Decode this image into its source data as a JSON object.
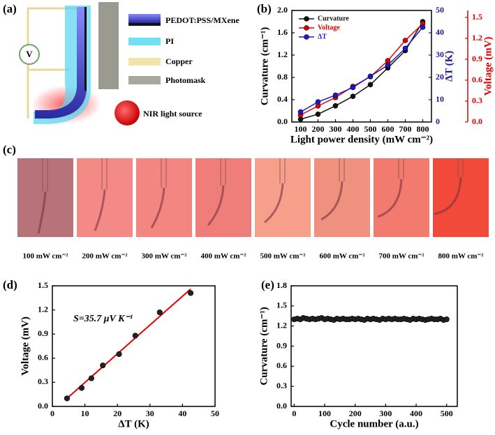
{
  "panel_labels": [
    "(a)",
    "(b)",
    "(c)",
    "(d)",
    "(e)"
  ],
  "panel_a": {
    "voltmeter": "V",
    "legend": [
      "PEDOT:PSS/MXene",
      "PI",
      "Copper",
      "Photomask"
    ],
    "light_source": "NIR light source"
  },
  "panel_c": {
    "captions": [
      "100 mW cm⁻²",
      "200 mW cm⁻²",
      "300 mW cm⁻²",
      "400 mW cm⁻²",
      "500 mW cm⁻²",
      "600 mW cm⁻²",
      "700 mW cm⁻²",
      "800 mW cm⁻²"
    ]
  },
  "chart_data": [
    {
      "type": "line",
      "xlabel": "Light power density (mW cm⁻²)",
      "ylabel": "Curvature (cm⁻¹)",
      "y2label": "ΔT (K)",
      "y3label": "Voltage (mV)",
      "x": [
        100,
        200,
        300,
        400,
        500,
        600,
        700,
        800
      ],
      "xlim": [
        50,
        850
      ],
      "xticks": [
        100,
        200,
        300,
        400,
        500,
        600,
        700,
        800
      ],
      "ylim": [
        0,
        2
      ],
      "yticks": [
        {
          "value": 0,
          "label": "0.0"
        },
        0.4,
        0.8,
        1.2,
        1.6,
        {
          "value": 2,
          "label": "2.0"
        }
      ],
      "y2lim": [
        0,
        50
      ],
      "y2ticks": [
        0,
        10,
        20,
        30,
        40,
        50
      ],
      "y3lim": [
        0,
        1.6
      ],
      "y3ticks": [
        {
          "value": 0,
          "label": "0.0"
        },
        0.3,
        0.6,
        0.9,
        1.2,
        1.5
      ],
      "axis_colors": {
        "y": "#000000",
        "y2": "#1a1a8c",
        "y3": "#e00000"
      },
      "legend": "upper left",
      "series": [
        {
          "name": "Curvature",
          "color": "#111111",
          "axis": "y",
          "values": [
            0.05,
            0.14,
            0.29,
            0.46,
            0.67,
            0.97,
            1.28,
            1.8
          ]
        },
        {
          "name": "Voltage",
          "color": "#e00000",
          "axis": "y3",
          "values": [
            0.1,
            0.23,
            0.35,
            0.51,
            0.65,
            0.88,
            1.17,
            1.41
          ]
        },
        {
          "name": "ΔT",
          "color": "#1a1acc",
          "axis": "y2",
          "values": [
            4.5,
            9,
            12,
            15.5,
            20.5,
            25.5,
            33,
            42.5
          ]
        }
      ]
    },
    {
      "type": "scatter",
      "xlabel": "ΔT (K)",
      "ylabel": "Voltage (mV)",
      "annotation": "S=35.7 μV K⁻¹",
      "x": [
        4.5,
        9,
        12,
        15.5,
        20.5,
        25.5,
        33,
        42.5
      ],
      "values": [
        0.1,
        0.23,
        0.35,
        0.51,
        0.65,
        0.88,
        1.17,
        1.41
      ],
      "color": "#222222",
      "fit_line": {
        "x": [
          4.5,
          42.5
        ],
        "values": [
          0.1,
          1.46
        ],
        "color": "#e00000"
      },
      "xlim": [
        0,
        50
      ],
      "xticks": [
        0,
        10,
        20,
        30,
        40,
        50
      ],
      "ylim": [
        0,
        1.5
      ],
      "yticks": [
        {
          "value": 0,
          "label": "0.0"
        },
        0.3,
        0.6,
        0.9,
        1.2,
        1.5
      ]
    },
    {
      "type": "scatter",
      "xlabel": "Cycle number (a.u.)",
      "ylabel": "Curvature (cm⁻¹)",
      "x": [
        0,
        10,
        20,
        30,
        40,
        50,
        60,
        70,
        80,
        90,
        100,
        110,
        120,
        130,
        140,
        150,
        160,
        170,
        180,
        190,
        200,
        210,
        220,
        230,
        240,
        250,
        260,
        270,
        280,
        290,
        300,
        310,
        320,
        330,
        340,
        350,
        360,
        370,
        380,
        390,
        400,
        410,
        420,
        430,
        440,
        450,
        460,
        470,
        480,
        490,
        500
      ],
      "values": [
        1.3,
        1.31,
        1.3,
        1.32,
        1.31,
        1.3,
        1.31,
        1.3,
        1.31,
        1.32,
        1.3,
        1.31,
        1.3,
        1.29,
        1.31,
        1.3,
        1.31,
        1.3,
        1.3,
        1.31,
        1.3,
        1.31,
        1.3,
        1.29,
        1.31,
        1.3,
        1.31,
        1.3,
        1.29,
        1.31,
        1.3,
        1.31,
        1.3,
        1.31,
        1.3,
        1.3,
        1.31,
        1.3,
        1.29,
        1.31,
        1.3,
        1.31,
        1.3,
        1.29,
        1.3,
        1.31,
        1.3,
        1.3,
        1.31,
        1.29,
        1.3
      ],
      "color": "#222222",
      "xlim": [
        -10,
        535
      ],
      "xticks": [
        0,
        100,
        200,
        300,
        400,
        500
      ],
      "ylim": [
        0,
        1.8
      ],
      "yticks": [
        {
          "value": 0,
          "label": "0.0"
        },
        0.3,
        0.6,
        0.9,
        1.2,
        1.5,
        1.8
      ]
    }
  ]
}
